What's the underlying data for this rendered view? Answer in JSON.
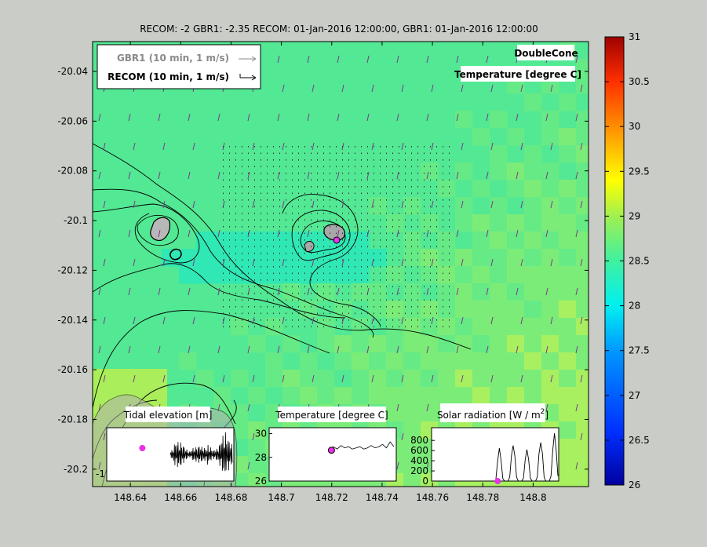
{
  "title": "RECOM: -2 GBR1: -2.35 RECOM: 01-Jan-2016 12:00:00, GBR1: 01-Jan-2016 12:00:00",
  "legend": {
    "entries": [
      {
        "label": "GBR1  (10 min, 1 m/s)",
        "color": "#8a8a8a"
      },
      {
        "label": "RECOM (10 min, 1 m/s)",
        "color": "#000000"
      }
    ]
  },
  "boxes": {
    "site": "DoubleCone",
    "field": "Temperature [degree C]"
  },
  "colors": {
    "figure_bg": "#c9ccc7",
    "field_main": "#52e894",
    "field_warm": "#a8f060",
    "field_cool": "#2fe8b4",
    "marker": "#e832e8",
    "arrow": "#7b3a8c"
  },
  "chart_data": [
    {
      "type": "heatmap",
      "name": "map",
      "xlabel": "",
      "ylabel": "",
      "xlim": [
        148.625,
        148.822
      ],
      "ylim": [
        -20.207,
        -20.028
      ],
      "x_ticks": [
        "148.64",
        "148.66",
        "148.68",
        "148.7",
        "148.72",
        "148.74",
        "148.76",
        "148.78",
        "148.8"
      ],
      "x_tick_values": [
        148.64,
        148.66,
        148.68,
        148.7,
        148.72,
        148.74,
        148.76,
        148.78,
        148.8
      ],
      "y_ticks": [
        "-20.04",
        "-20.06",
        "-20.08",
        "-20.1",
        "-20.12",
        "-20.14",
        "-20.16",
        "-20.18",
        "-20.2"
      ],
      "y_tick_values": [
        -20.04,
        -20.06,
        -20.08,
        -20.1,
        -20.12,
        -20.14,
        -20.16,
        -20.18,
        -20.2
      ],
      "colorbar": {
        "min": 26,
        "max": 31,
        "ticks": [
          "26",
          "26.5",
          "27",
          "27.5",
          "28",
          "28.5",
          "29",
          "29.5",
          "30",
          "30.5",
          "31"
        ],
        "tick_values": [
          26,
          26.5,
          27,
          27.5,
          28,
          28.5,
          29,
          29.5,
          30,
          30.5,
          31
        ]
      },
      "islands": [
        {
          "name": "island-west",
          "lon": 148.654,
          "lat": -20.099
        },
        {
          "name": "island-east",
          "lon": 148.716,
          "lat": -20.102
        }
      ],
      "marker": {
        "lon": 148.7195,
        "lat": -20.1055
      }
    },
    {
      "type": "line",
      "title": "Tidal elevation [m]",
      "ytick_visible": [
        "-1"
      ],
      "series": [
        {
          "values": [
            0.3,
            -0.6,
            0.7,
            -0.8,
            0.9,
            -1.0,
            0.8,
            -0.9,
            0.6,
            -0.5,
            0.4,
            -0.4,
            0.9,
            -1.1,
            1.2,
            -1.0,
            1.1,
            -1.2,
            0.9,
            -0.8
          ]
        }
      ],
      "marker": {
        "x": 0.28,
        "y": 0.8
      }
    },
    {
      "type": "line",
      "title": "Temperature [degree C]",
      "ylim": [
        26,
        30.5
      ],
      "y_ticks": [
        "26",
        "28",
        "30"
      ],
      "y_tick_values": [
        26,
        28,
        30
      ],
      "series": [
        {
          "values": [
            28.6,
            28.9,
            28.7,
            29.0,
            28.8,
            28.9,
            28.7,
            28.8,
            28.9,
            28.7,
            28.8,
            29.0,
            28.8,
            28.9,
            29.1,
            28.8,
            29.3,
            28.9
          ]
        }
      ],
      "marker": {
        "x": 0.1,
        "y": 28.6
      }
    },
    {
      "type": "line",
      "title": "Solar radiation [W / m",
      "title_sup": "2",
      "title_end": "]",
      "ylim": [
        0,
        1050
      ],
      "y_ticks": [
        "0",
        "200",
        "400",
        "600",
        "800"
      ],
      "y_tick_values": [
        0,
        200,
        400,
        600,
        800
      ],
      "series": [
        {
          "values": [
            0,
            0,
            0,
            0,
            0,
            0,
            0,
            0,
            0,
            0,
            0,
            0,
            0,
            0,
            0,
            0,
            0,
            0,
            0,
            0,
            0,
            0,
            0,
            0,
            0,
            0,
            0,
            0,
            0,
            0,
            0,
            0,
            0,
            0,
            0,
            0,
            0,
            0,
            50,
            400,
            650,
            400,
            50,
            0,
            0,
            0,
            80,
            500,
            700,
            500,
            80,
            0,
            0,
            0,
            60,
            420,
            620,
            420,
            60,
            0,
            0,
            0,
            80,
            540,
            760,
            540,
            80,
            0,
            0,
            0,
            100,
            600,
            940,
            600,
            100
          ]
        }
      ],
      "marker": {
        "x": 0.52,
        "y": 0
      }
    }
  ]
}
